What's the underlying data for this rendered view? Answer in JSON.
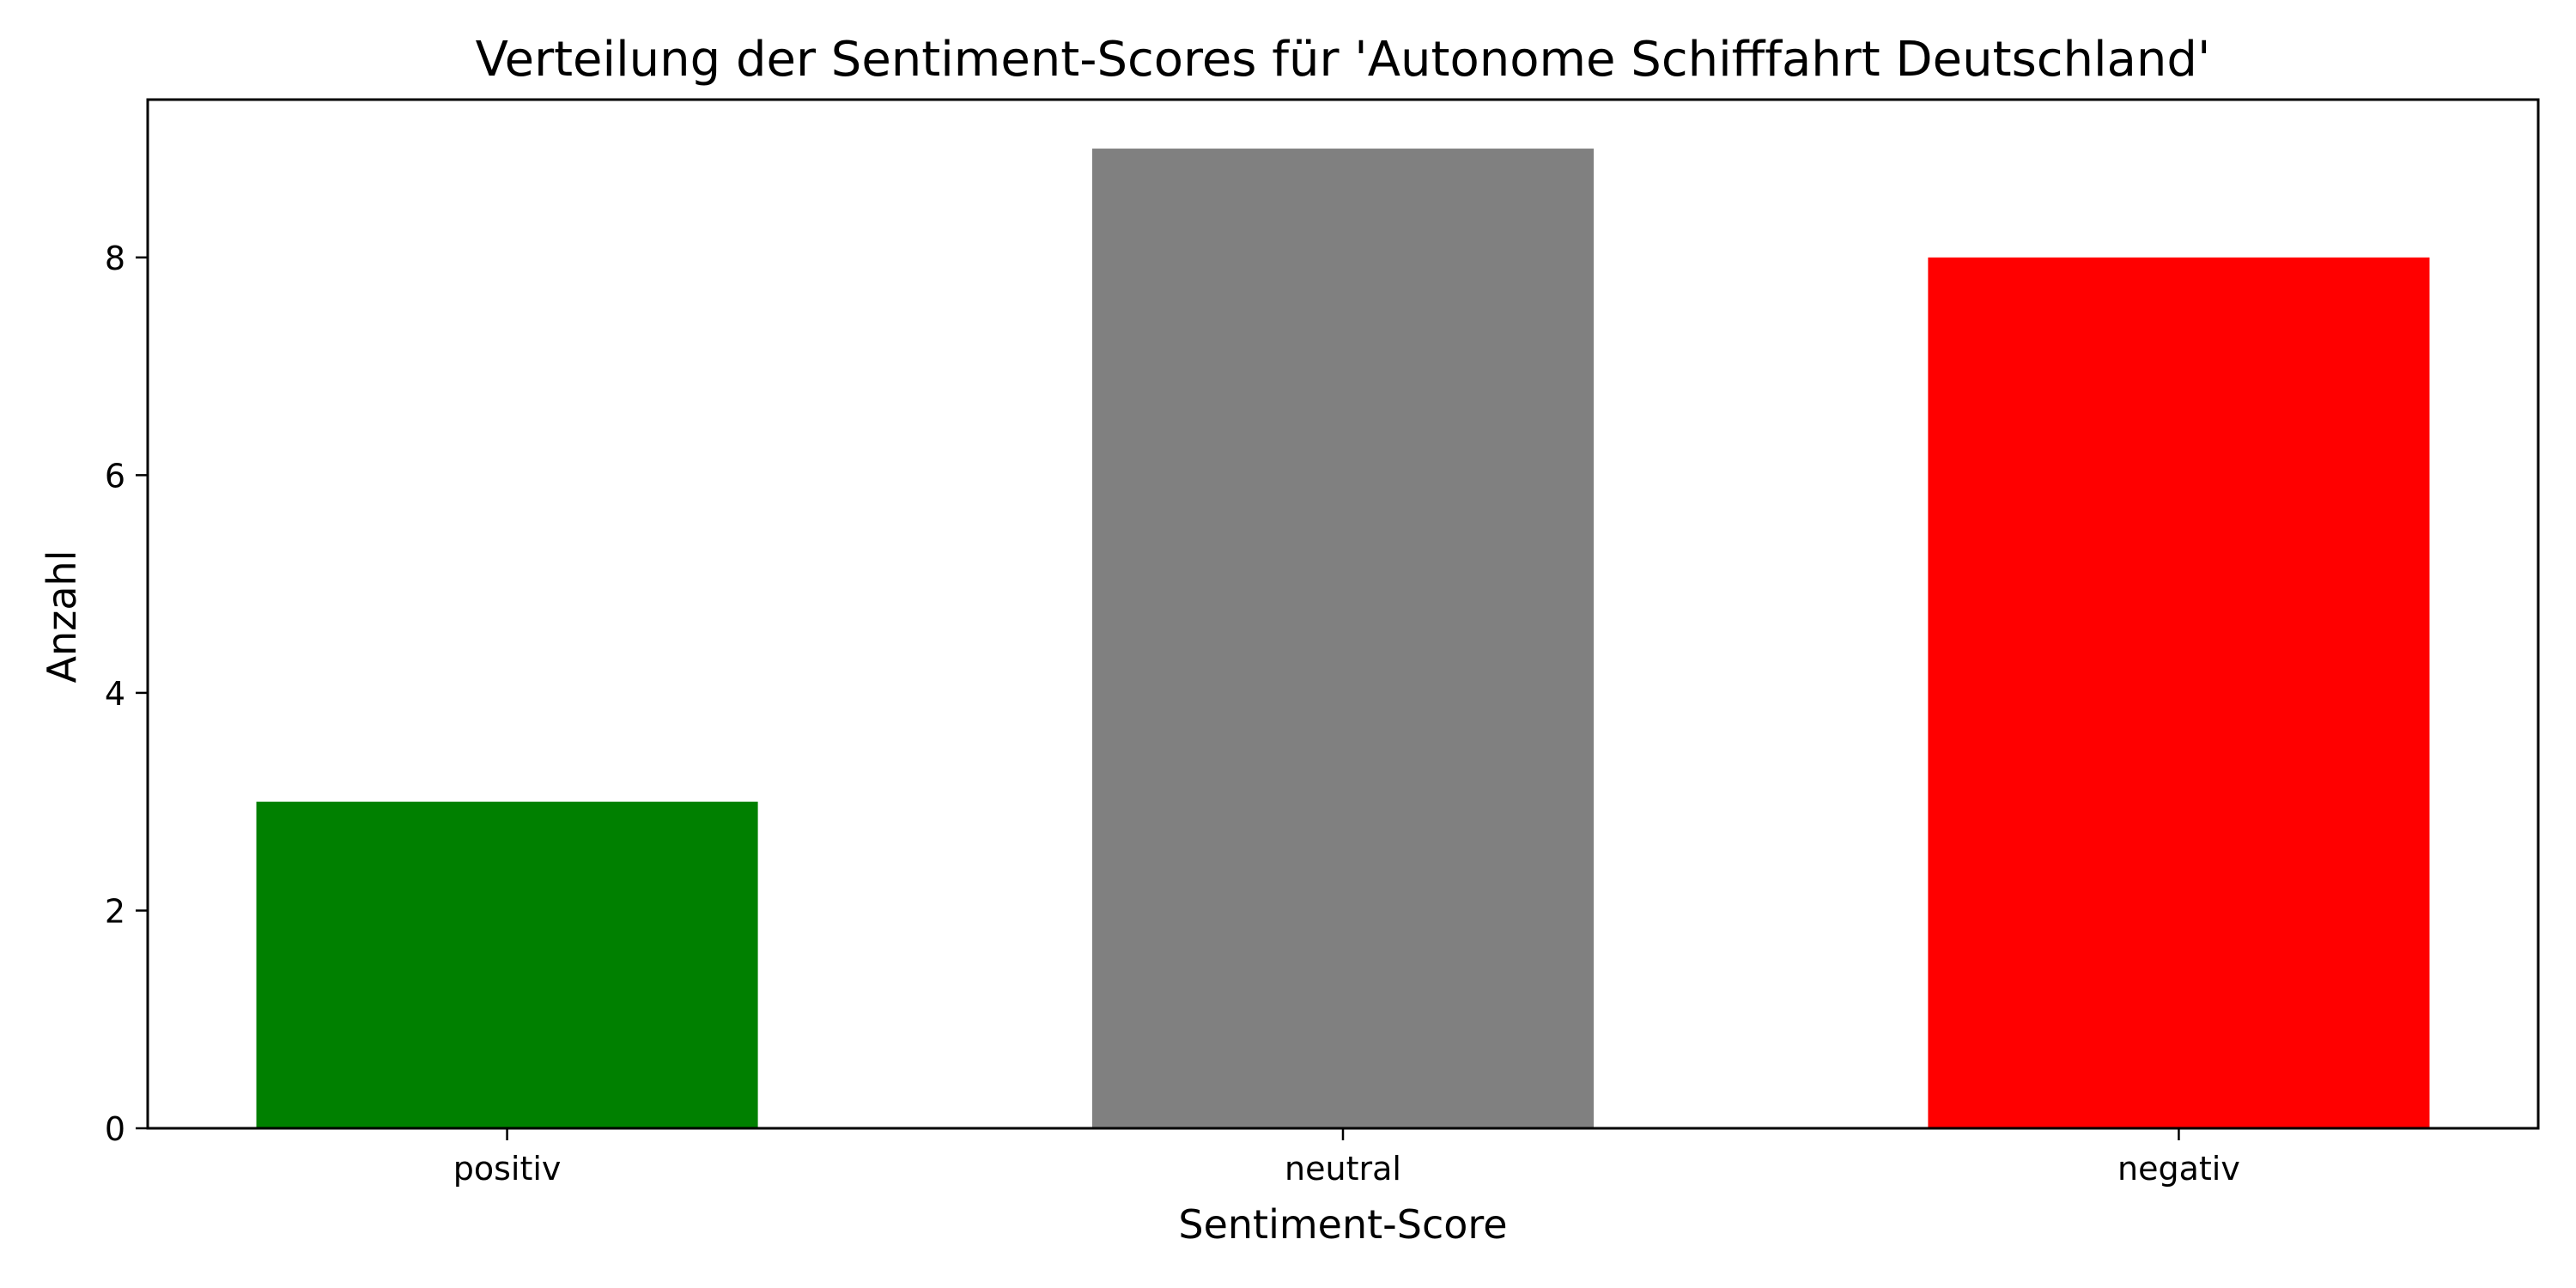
{
  "chart_data": {
    "type": "bar",
    "title": "Verteilung der Sentiment-Scores für 'Autonome Schifffahrt Deutschland'",
    "xlabel": "Sentiment-Score",
    "ylabel": "Anzahl",
    "categories": [
      "positiv",
      "neutral",
      "negativ"
    ],
    "values": [
      3,
      9,
      8
    ],
    "colors": [
      "#008000",
      "#808080",
      "#ff0000"
    ],
    "ylim": [
      0,
      9.45
    ],
    "yticks": [
      0,
      2,
      4,
      6,
      8
    ],
    "grid": false,
    "legend": false,
    "reference_line": {
      "y": 0,
      "style": "dashed"
    }
  }
}
